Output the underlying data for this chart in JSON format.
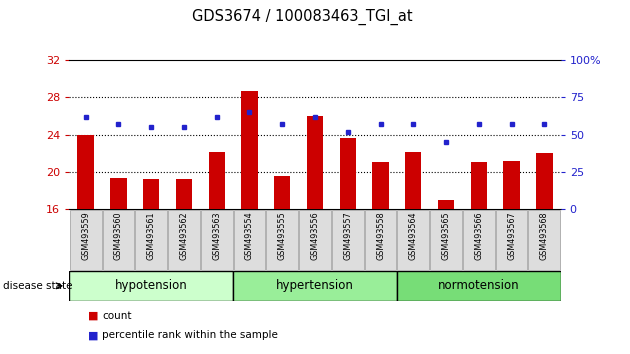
{
  "title": "GDS3674 / 100083463_TGI_at",
  "samples": [
    "GSM493559",
    "GSM493560",
    "GSM493561",
    "GSM493562",
    "GSM493563",
    "GSM493554",
    "GSM493555",
    "GSM493556",
    "GSM493557",
    "GSM493558",
    "GSM493564",
    "GSM493565",
    "GSM493566",
    "GSM493567",
    "GSM493568"
  ],
  "count_values": [
    24.0,
    19.3,
    19.2,
    19.2,
    22.1,
    28.7,
    19.5,
    26.0,
    23.6,
    21.0,
    22.1,
    17.0,
    21.0,
    21.2,
    22.0
  ],
  "percentile_values": [
    62,
    57,
    55,
    55,
    62,
    65,
    57,
    62,
    52,
    57,
    57,
    45,
    57,
    57,
    57
  ],
  "ylim_left": [
    16,
    32
  ],
  "ylim_right": [
    0,
    100
  ],
  "yticks_left": [
    16,
    20,
    24,
    28,
    32
  ],
  "yticks_right": [
    0,
    25,
    50,
    75,
    100
  ],
  "group_labels": [
    "hypotension",
    "hypertension",
    "normotension"
  ],
  "group_starts": [
    0,
    5,
    10
  ],
  "group_ends": [
    5,
    10,
    15
  ],
  "group_colors": [
    "#ccffcc",
    "#99ee99",
    "#77dd77"
  ],
  "bar_color": "#cc0000",
  "dot_color": "#2222cc",
  "bar_width": 0.5,
  "left_axis_color": "#cc0000",
  "right_axis_color": "#2222cc",
  "hgrid_values": [
    20,
    24,
    28
  ],
  "disease_state_label": "disease state",
  "legend_count_label": "count",
  "legend_percentile_label": "percentile rank within the sample"
}
